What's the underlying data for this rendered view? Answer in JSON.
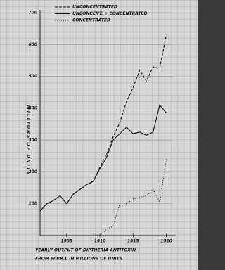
{
  "chart_data": {
    "type": "line",
    "title": [
      "YEARLY OUTPUT OF DIPTHERIA ANTITOXIN",
      "FROM W.P.R.L IN MILLIONS OF UNITS"
    ],
    "y_label": "MILLIONS OF UNITS",
    "x": [
      1901,
      1902,
      1903,
      1904,
      1905,
      1906,
      1907,
      1908,
      1909,
      1910,
      1911,
      1912,
      1913,
      1914,
      1915,
      1916,
      1917,
      1918,
      1919,
      1920
    ],
    "series": [
      {
        "name": "UNCONCENTRATED",
        "color": "#111111",
        "line_style": "dashed",
        "values": [
          77,
          100,
          110,
          125,
          100,
          130,
          145,
          160,
          170,
          215,
          255,
          310,
          355,
          420,
          465,
          520,
          485,
          530,
          525,
          630
        ]
      },
      {
        "name": "UNCONCENT. + CONCENTRATED",
        "color": "#111111",
        "line_style": "solid",
        "values": [
          77,
          100,
          110,
          125,
          100,
          130,
          145,
          160,
          170,
          210,
          245,
          300,
          320,
          340,
          320,
          325,
          315,
          325,
          410,
          385
        ]
      },
      {
        "name": "CONCENTRATED",
        "color": "#111111",
        "line_style": "dotted",
        "values": [
          null,
          null,
          null,
          null,
          null,
          null,
          null,
          null,
          5,
          0,
          20,
          30,
          100,
          100,
          115,
          120,
          125,
          145,
          105,
          240
        ]
      }
    ],
    "xlim": [
      1901,
      1921
    ],
    "xticks": [
      1905,
      1910,
      1915,
      1920
    ],
    "ylim": [
      0,
      700
    ],
    "yticks": [
      100,
      200,
      300,
      400,
      500,
      600,
      700
    ],
    "grid": true,
    "legend": "top"
  }
}
